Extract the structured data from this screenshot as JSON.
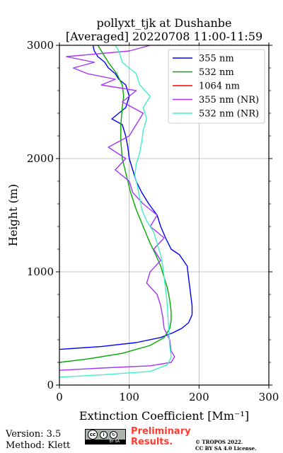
{
  "chart_data": {
    "type": "line",
    "title": "pollyxt_tjk at Dushanbe",
    "subtitle": "[Averaged] 20220708 11:00-11:59",
    "xlabel": "Extinction Coefficient [Mm⁻¹]",
    "ylabel": "Height (m)",
    "xlim": [
      0,
      300
    ],
    "ylim": [
      0,
      3000
    ],
    "xticks": [
      0,
      100,
      200,
      300
    ],
    "yticks": [
      0,
      1000,
      2000,
      3000
    ],
    "grid": true,
    "legend_position": "top-right",
    "series": [
      {
        "name": "355 nm",
        "color": "#0000ff",
        "points": [
          [
            0,
            315
          ],
          [
            60,
            340
          ],
          [
            110,
            375
          ],
          [
            145,
            420
          ],
          [
            162,
            460
          ],
          [
            175,
            500
          ],
          [
            185,
            550
          ],
          [
            190,
            620
          ],
          [
            190,
            700
          ],
          [
            188,
            800
          ],
          [
            186,
            900
          ],
          [
            184,
            1000
          ],
          [
            183,
            1050
          ],
          [
            172,
            1150
          ],
          [
            160,
            1200
          ],
          [
            152,
            1300
          ],
          [
            145,
            1400
          ],
          [
            140,
            1500
          ],
          [
            128,
            1600
          ],
          [
            118,
            1700
          ],
          [
            110,
            1800
          ],
          [
            105,
            1900
          ],
          [
            100,
            2000
          ],
          [
            98,
            2100
          ],
          [
            95,
            2200
          ],
          [
            90,
            2300
          ],
          [
            75,
            2350
          ],
          [
            85,
            2400
          ],
          [
            95,
            2450
          ],
          [
            100,
            2550
          ],
          [
            95,
            2650
          ],
          [
            85,
            2700
          ],
          [
            80,
            2750
          ],
          [
            70,
            2800
          ],
          [
            65,
            2850
          ],
          [
            55,
            2900
          ],
          [
            50,
            2950
          ],
          [
            48,
            3000
          ]
        ]
      },
      {
        "name": "532 nm",
        "color": "#00aa00",
        "points": [
          [
            0,
            200
          ],
          [
            40,
            230
          ],
          [
            90,
            280
          ],
          [
            130,
            350
          ],
          [
            150,
            420
          ],
          [
            158,
            500
          ],
          [
            160,
            570
          ],
          [
            160,
            650
          ],
          [
            158,
            750
          ],
          [
            155,
            850
          ],
          [
            150,
            950
          ],
          [
            145,
            1050
          ],
          [
            138,
            1150
          ],
          [
            130,
            1250
          ],
          [
            120,
            1400
          ],
          [
            110,
            1550
          ],
          [
            102,
            1700
          ],
          [
            96,
            1850
          ],
          [
            90,
            2000
          ],
          [
            88,
            2150
          ],
          [
            88,
            2300
          ],
          [
            90,
            2450
          ],
          [
            92,
            2550
          ],
          [
            90,
            2650
          ],
          [
            82,
            2750
          ],
          [
            70,
            2850
          ],
          [
            60,
            2950
          ],
          [
            55,
            3000
          ]
        ]
      },
      {
        "name": "1064 nm",
        "color": "#ff0000",
        "points": []
      },
      {
        "name": "355 nm (NR)",
        "color": "#a335ff",
        "points": [
          [
            0,
            130
          ],
          [
            60,
            150
          ],
          [
            130,
            170
          ],
          [
            160,
            200
          ],
          [
            165,
            250
          ],
          [
            160,
            300
          ],
          [
            158,
            400
          ],
          [
            150,
            500
          ],
          [
            148,
            600
          ],
          [
            145,
            700
          ],
          [
            140,
            800
          ],
          [
            125,
            900
          ],
          [
            130,
            1000
          ],
          [
            145,
            1100
          ],
          [
            135,
            1200
          ],
          [
            150,
            1300
          ],
          [
            130,
            1400
          ],
          [
            140,
            1500
          ],
          [
            120,
            1600
          ],
          [
            105,
            1700
          ],
          [
            100,
            1800
          ],
          [
            80,
            1900
          ],
          [
            95,
            2000
          ],
          [
            70,
            2100
          ],
          [
            100,
            2200
          ],
          [
            110,
            2300
          ],
          [
            120,
            2400
          ],
          [
            90,
            2500
          ],
          [
            110,
            2600
          ],
          [
            60,
            2650
          ],
          [
            80,
            2700
          ],
          [
            40,
            2750
          ],
          [
            20,
            2800
          ],
          [
            50,
            2850
          ],
          [
            10,
            2900
          ],
          [
            100,
            2950
          ],
          [
            130,
            3000
          ]
        ]
      },
      {
        "name": "532 nm (NR)",
        "color": "#44eec8",
        "points": [
          [
            0,
            70
          ],
          [
            60,
            90
          ],
          [
            130,
            120
          ],
          [
            155,
            180
          ],
          [
            160,
            250
          ],
          [
            158,
            350
          ],
          [
            157,
            450
          ],
          [
            156,
            550
          ],
          [
            155,
            650
          ],
          [
            154,
            750
          ],
          [
            152,
            850
          ],
          [
            150,
            950
          ],
          [
            148,
            1050
          ],
          [
            145,
            1150
          ],
          [
            140,
            1250
          ],
          [
            135,
            1350
          ],
          [
            125,
            1450
          ],
          [
            118,
            1550
          ],
          [
            115,
            1650
          ],
          [
            112,
            1750
          ],
          [
            108,
            1850
          ],
          [
            110,
            1950
          ],
          [
            115,
            2050
          ],
          [
            118,
            2150
          ],
          [
            120,
            2250
          ],
          [
            125,
            2350
          ],
          [
            120,
            2450
          ],
          [
            130,
            2550
          ],
          [
            115,
            2650
          ],
          [
            110,
            2750
          ],
          [
            90,
            2850
          ],
          [
            85,
            2950
          ],
          [
            80,
            3000
          ]
        ]
      }
    ]
  },
  "footer": {
    "version": "Version: 3.5",
    "method": "Method: Klett",
    "cc_by": "BY",
    "cc_sa": "SA",
    "preliminary_line1": "Preliminary",
    "preliminary_line2": "Results.",
    "copyright_line1": "© TROPOS 2022.",
    "copyright_line2": "CC BY SA 4.0 License."
  }
}
